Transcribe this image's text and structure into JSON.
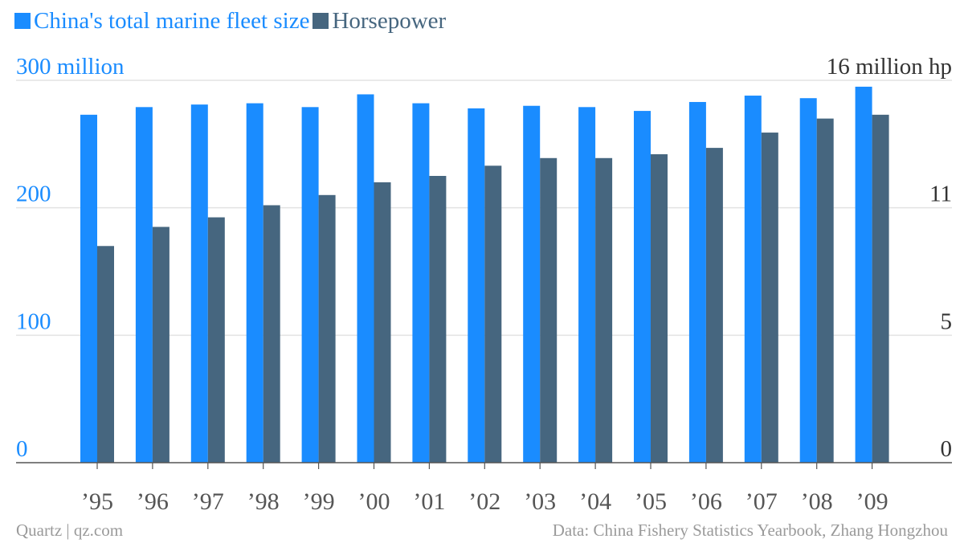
{
  "legend": {
    "items": [
      {
        "label": "China's total marine fleet size",
        "color": "#1a8cff"
      },
      {
        "label": "Horsepower",
        "color": "#46667f"
      }
    ]
  },
  "footer": {
    "source": "Quartz | qz.com",
    "credit": "Data: China Fishery Statistics Yearbook, Zhang Hongzhou"
  },
  "chart_data": {
    "type": "bar",
    "categories": [
      "’95",
      "’96",
      "’97",
      "’98",
      "’99",
      "’00",
      "’01",
      "’02",
      "’03",
      "’04",
      "’05",
      "’06",
      "’07",
      "’08",
      "’09"
    ],
    "series": [
      {
        "name": "China's total marine fleet size",
        "axis": "left",
        "color": "#1a8cff",
        "values": [
          273,
          279,
          281,
          282,
          279,
          289,
          282,
          278,
          280,
          279,
          276,
          283,
          288,
          286,
          295
        ]
      },
      {
        "name": "Horsepower",
        "axis": "right",
        "color": "#46667f",
        "values": [
          9.2,
          10.1,
          10.55,
          11.1,
          11.5,
          12.0,
          12.25,
          12.65,
          12.95,
          12.95,
          13.1,
          13.35,
          13.95,
          14.5,
          14.65
        ]
      }
    ],
    "y_left": {
      "ylim": [
        0,
        300
      ],
      "tick_values": [
        0,
        100,
        200,
        300
      ],
      "tick_labels": [
        "0",
        "100",
        "200",
        "300 million"
      ],
      "color": "#1a8cff"
    },
    "y_right": {
      "tick_values": [
        0,
        5,
        11,
        16
      ],
      "tick_labels": [
        "0",
        "5",
        "11",
        "16 million hp"
      ],
      "color": "#333333"
    },
    "grid": true,
    "legend_position": "top-left"
  }
}
